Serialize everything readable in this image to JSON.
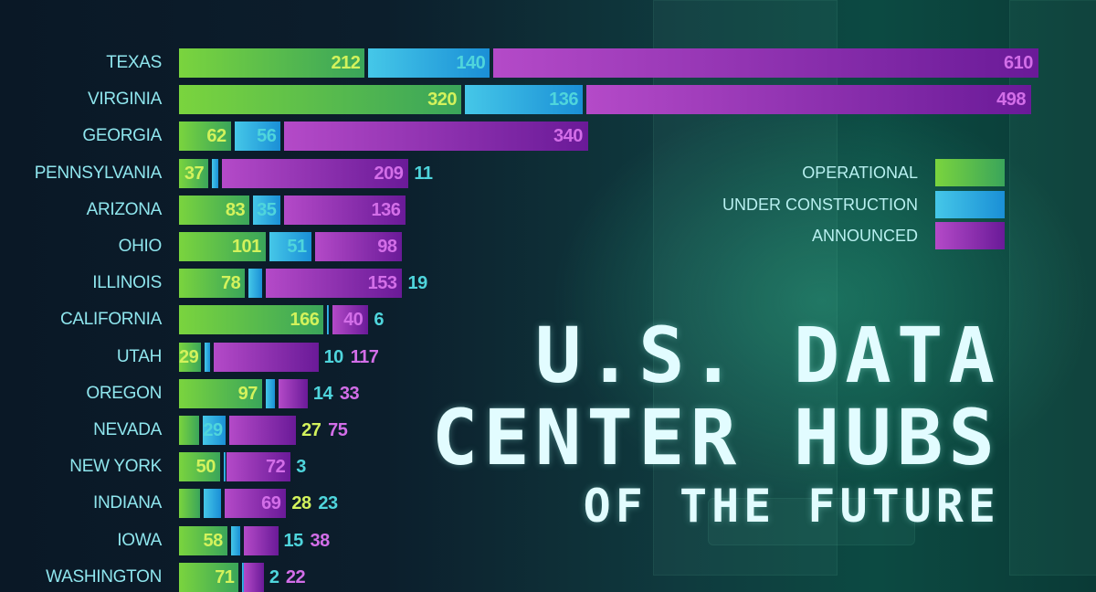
{
  "chart_data": {
    "type": "bar",
    "orientation": "horizontal",
    "stacked": true,
    "title": "U.S. Data Center Hubs of the Future",
    "categories": [
      "TEXAS",
      "VIRGINIA",
      "GEORGIA",
      "PENNSYLVANIA",
      "ARIZONA",
      "OHIO",
      "ILLINOIS",
      "CALIFORNIA",
      "UTAH",
      "OREGON",
      "NEVADA",
      "NEW YORK",
      "INDIANA",
      "IOWA",
      "WASHINGTON"
    ],
    "series": [
      {
        "name": "OPERATIONAL",
        "key": "op",
        "color": "#5cbf4a",
        "values": [
          212,
          320,
          62,
          37,
          83,
          101,
          78,
          166,
          29,
          97,
          27,
          50,
          28,
          58,
          71
        ]
      },
      {
        "name": "UNDER CONSTRUCTION",
        "key": "uc",
        "color": "#2fb0e0",
        "values": [
          140,
          136,
          56,
          11,
          35,
          51,
          19,
          6,
          10,
          14,
          29,
          3,
          23,
          15,
          2
        ]
      },
      {
        "name": "ANNOUNCED",
        "key": "an",
        "color": "#9a34b8",
        "values": [
          610,
          498,
          340,
          209,
          136,
          98,
          153,
          40,
          117,
          33,
          75,
          72,
          69,
          38,
          22
        ]
      }
    ],
    "legend_position": "right",
    "grid": false
  },
  "title": {
    "line1": "U.S. DATA",
    "line2": "CENTER HUBS",
    "line3": "OF THE FUTURE"
  }
}
